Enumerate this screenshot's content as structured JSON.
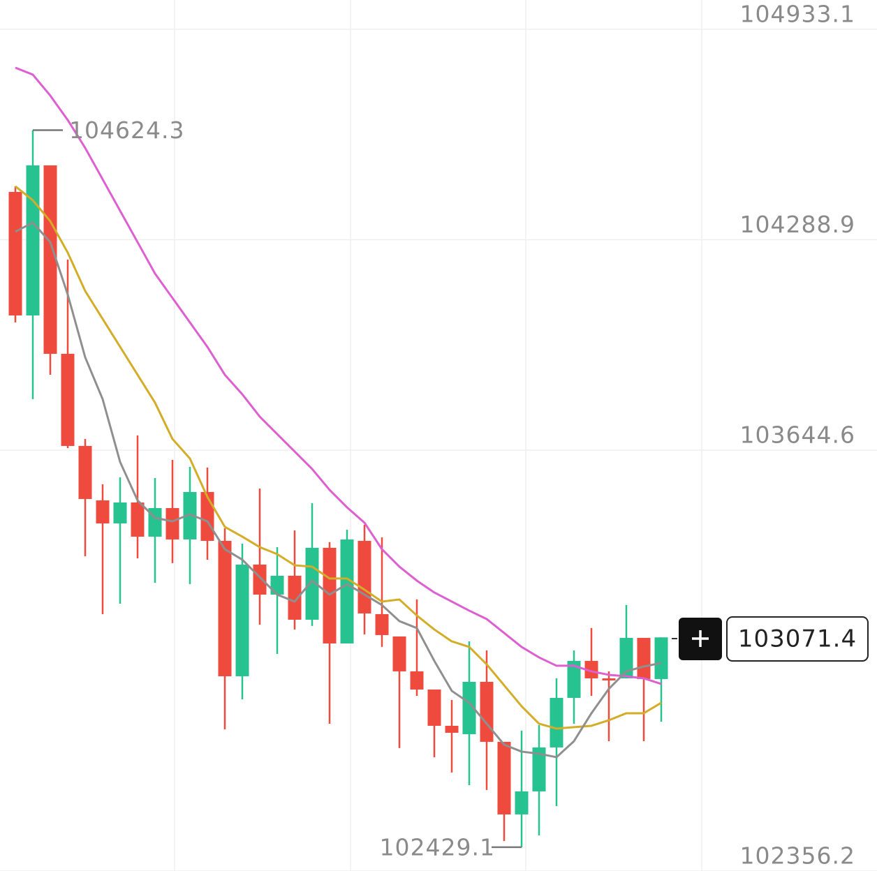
{
  "chart_data": {
    "type": "candlestick",
    "up_color": "#26c28f",
    "down_color": "#ef4a3e",
    "ylim": [
      102356.2,
      105022.7
    ],
    "yticks": [
      104933.1,
      104288.9,
      103644.6,
      102356.2
    ],
    "grid": true,
    "open": [
      104435.2,
      104057.0,
      104516.4,
      103939.5,
      103657.5,
      103490.8,
      103420.3,
      103484.4,
      103379.7,
      103467.3,
      103371.2,
      103516.5,
      103366.9,
      102952.4,
      103294.3,
      103202.4,
      103260.1,
      103125.5,
      103345.6,
      103052.8,
      103366.9,
      103142.6,
      103074.2,
      102967.4,
      102911.8,
      102800.7,
      102775.1,
      102935.3,
      102751.6,
      102529.4,
      102599.9,
      102734.5,
      102886.2,
      102999.4,
      102946.0,
      102946.0,
      103069.9,
      102943.9
    ],
    "high": [
      104452.3,
      104624.3,
      104516.4,
      104228.0,
      103678.9,
      103540.0,
      103561.4,
      103689.6,
      103559.2,
      103614.8,
      103593.4,
      103591.3,
      103405.4,
      103358.4,
      103527.2,
      103347.7,
      103399.0,
      103482.3,
      103362.7,
      103401.1,
      103416.1,
      103377.6,
      103074.2,
      103187.5,
      102911.8,
      102879.8,
      103059.2,
      103031.5,
      102751.6,
      102785.8,
      102802.9,
      102946.0,
      103031.5,
      103099.9,
      102967.4,
      103170.4,
      103069.9,
      103071.4
    ],
    "low": [
      104035.7,
      103800.7,
      103875.4,
      103651.1,
      103319.9,
      103142.6,
      103174.6,
      103313.5,
      103238.7,
      103298.6,
      103234.5,
      103309.2,
      102790.0,
      102881.9,
      103110.5,
      103020.8,
      103095.6,
      103106.3,
      102807.1,
      103052.8,
      103080.6,
      103042.2,
      102732.4,
      102892.6,
      102704.6,
      102657.6,
      102619.1,
      102604.2,
      102448.2,
      102429.1,
      102465.3,
      102555.0,
      102807.1,
      102892.6,
      102753.7,
      102946.0,
      102753.7,
      102813.5
    ],
    "close": [
      104057.0,
      104516.4,
      103939.5,
      103657.5,
      103495.1,
      103420.3,
      103484.4,
      103379.7,
      103467.3,
      103371.2,
      103516.5,
      103366.9,
      102952.4,
      103294.3,
      103202.4,
      103260.1,
      103125.5,
      103345.6,
      103052.8,
      103371.2,
      103144.7,
      103078.5,
      102967.4,
      102911.8,
      102800.7,
      102779.4,
      102935.3,
      102751.6,
      102529.4,
      102599.9,
      102734.5,
      102886.2,
      102999.4,
      102946.0,
      102939.6,
      103069.9,
      102943.9,
      103071.4
    ],
    "lines": [
      {
        "color": "#dd5fd0",
        "values": [
          104815.5,
          104794.2,
          104730.1,
          104655.3,
          104569.8,
          104473.7,
          104377.5,
          104281.4,
          104185.2,
          104110.5,
          104035.7,
          103960.9,
          103875.4,
          103815.6,
          103747.2,
          103693.8,
          103640.4,
          103587.0,
          103522.9,
          103469.5,
          103422.5,
          103341.3,
          103287.9,
          103245.1,
          103208.8,
          103181.0,
          103153.3,
          103127.6,
          103084.9,
          103042.2,
          103010.1,
          102984.5,
          102984.5,
          102967.4,
          102956.7,
          102952.4,
          102946.0,
          102928.9
        ]
      },
      {
        "color": "#d4ad28",
        "values": [
          104452.3,
          104409.6,
          104345.5,
          104249.3,
          104131.8,
          104046.4,
          103960.9,
          103875.4,
          103790.0,
          103678.9,
          103619.0,
          103501.5,
          103409.7,
          103379.7,
          103347.7,
          103326.3,
          103292.1,
          103287.9,
          103251.6,
          103251.6,
          103217.4,
          103181.0,
          103187.5,
          103138.3,
          103095.6,
          103059.2,
          103042.2,
          102988.7,
          102924.7,
          102860.6,
          102807.1,
          102792.2,
          102796.5,
          102800.7,
          102817.8,
          102839.2,
          102839.2,
          102871.2
        ]
      },
      {
        "color": "#8f8f8f",
        "values": [
          104313.4,
          104341.2,
          104281.4,
          104121.1,
          103928.9,
          103800.7,
          103608.4,
          103490.8,
          103437.4,
          103426.7,
          103448.1,
          103426.7,
          103341.3,
          103309.2,
          103255.8,
          103202.4,
          103181.0,
          103245.1,
          103202.4,
          103234.5,
          103202.4,
          103170.4,
          103121.2,
          103099.9,
          102999.4,
          102907.6,
          102871.2,
          102807.1,
          102743.0,
          102721.7,
          102715.3,
          102704.6,
          102753.7,
          102839.2,
          102914.0,
          102967.4,
          102982.3,
          102993.0
        ]
      }
    ]
  }
}
